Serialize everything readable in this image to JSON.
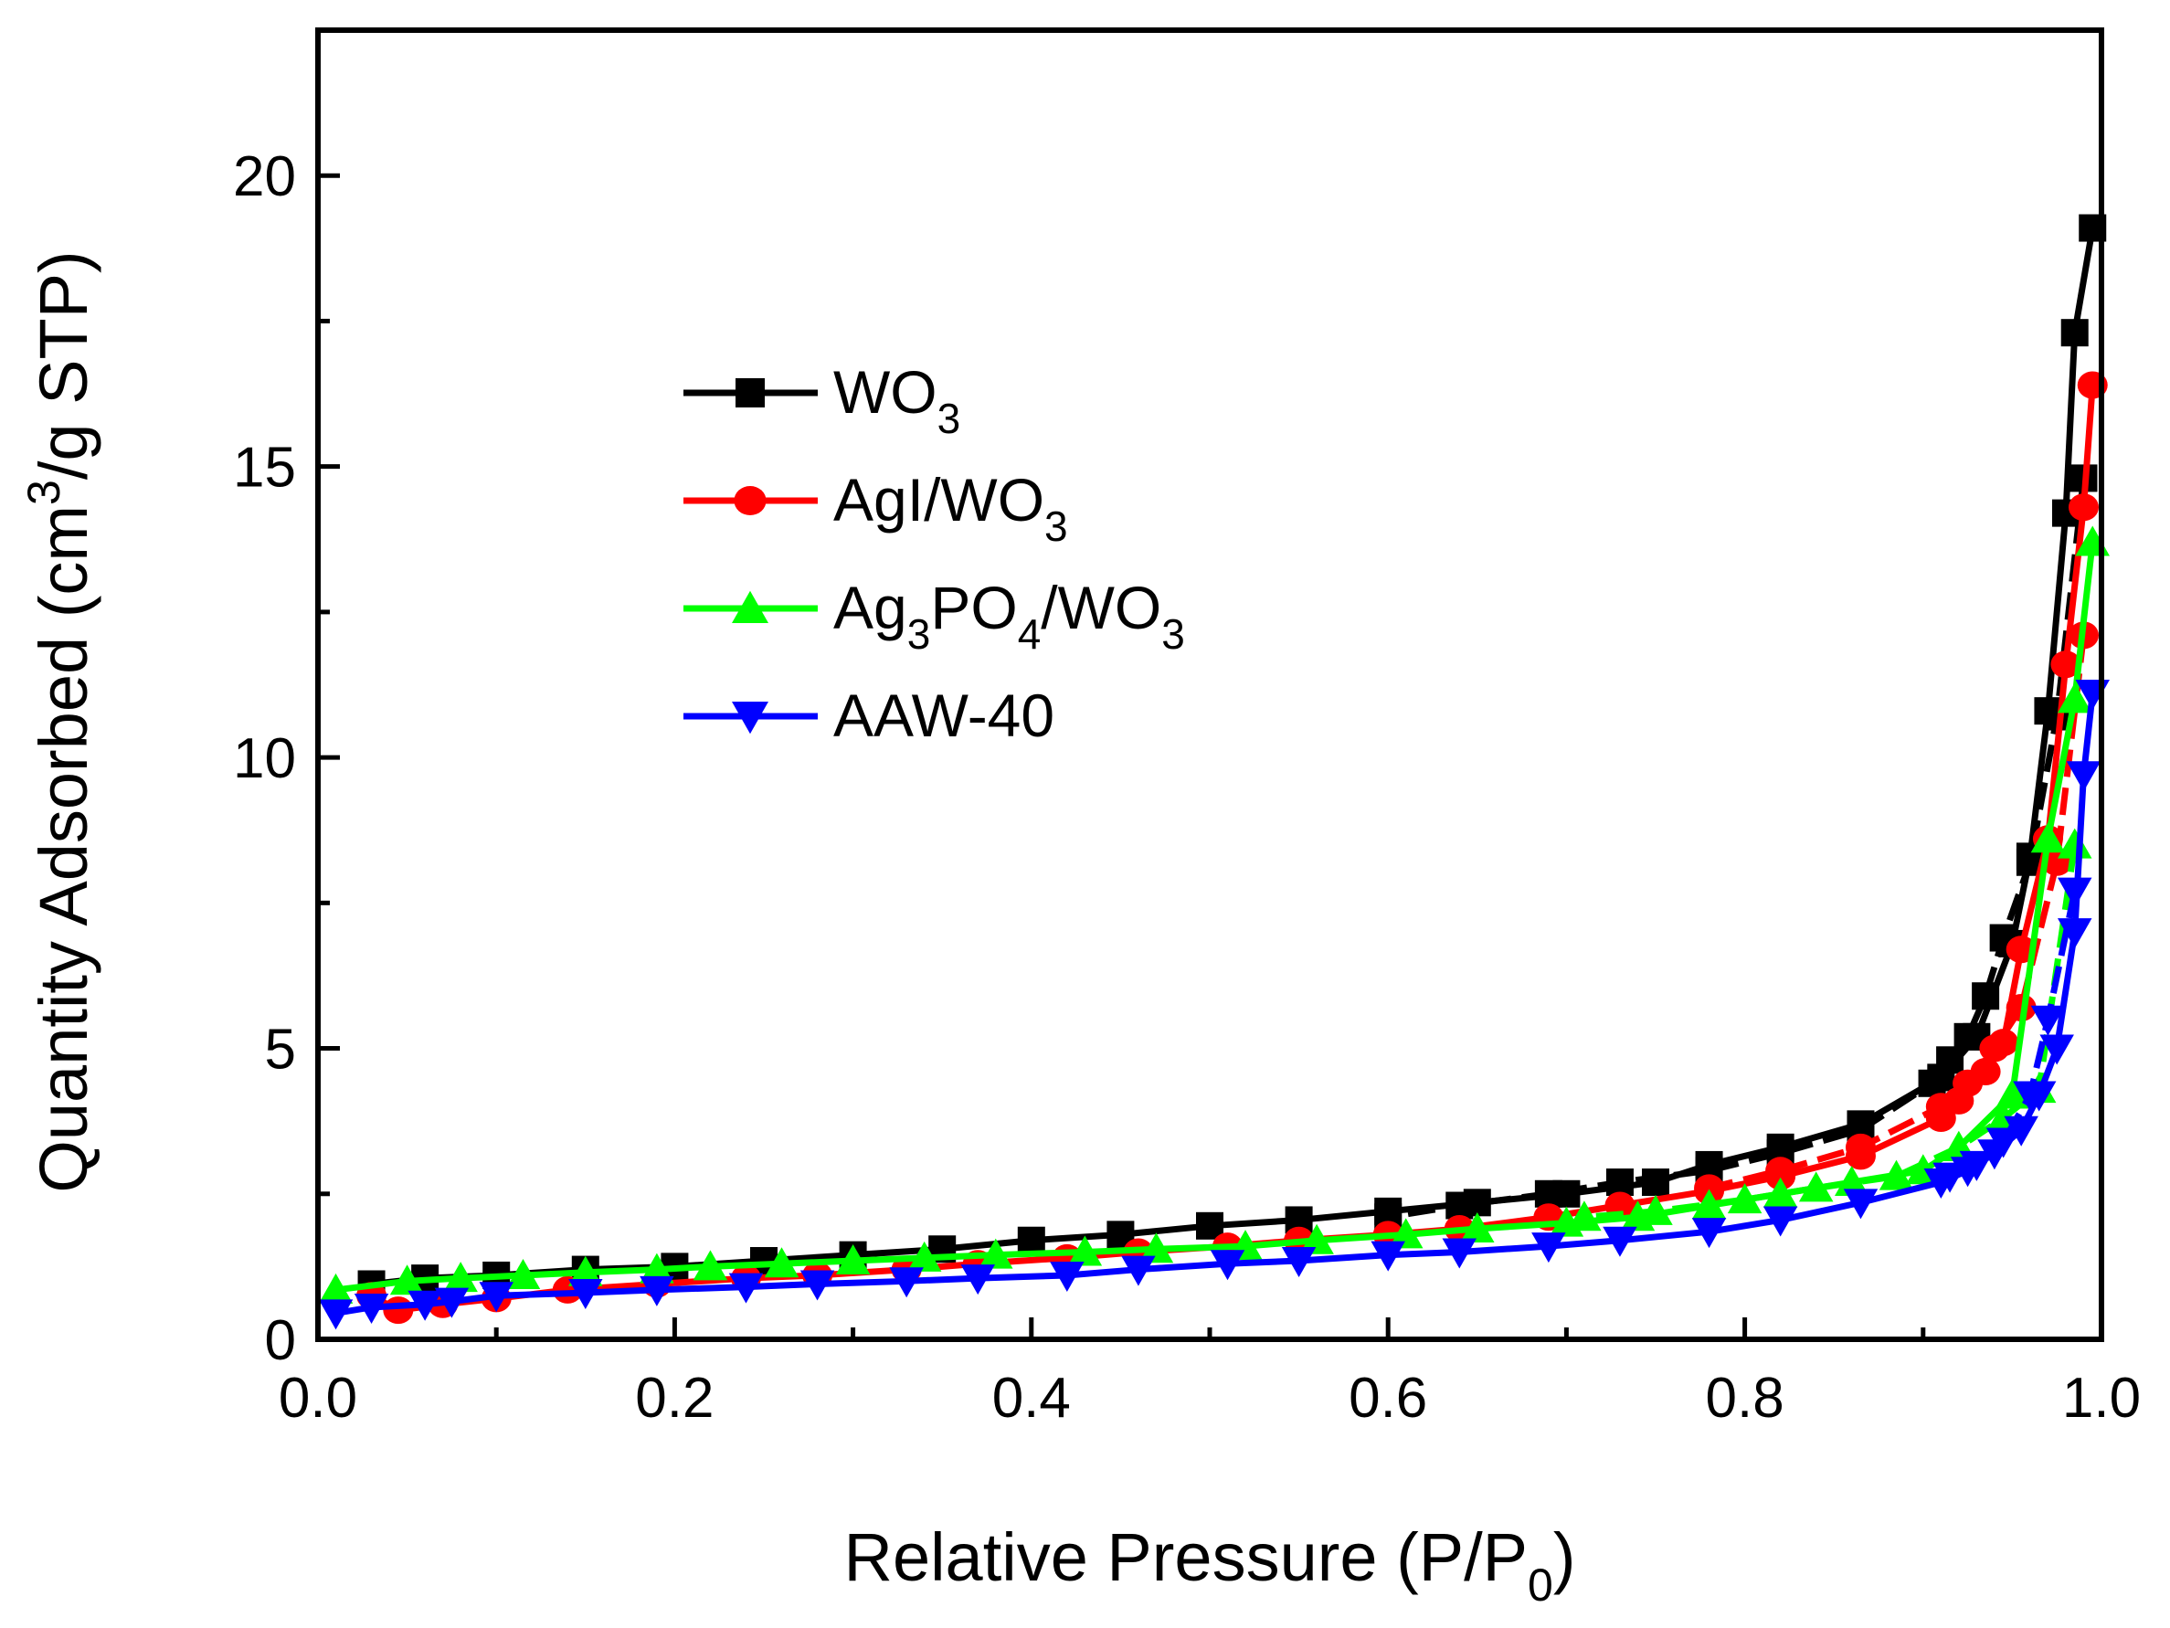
{
  "chart_data": {
    "type": "line",
    "title": "",
    "xlabel": "Relative Pressure (P/P",
    "xlabel_sub": "0",
    "xlabel_end": ")",
    "ylabel": "Quantity Adsorbed (cm",
    "ylabel_sup": "3",
    "ylabel_end": "/g STP)",
    "xlim": [
      0.0,
      1.0
    ],
    "ylim": [
      0,
      22.5
    ],
    "xticks": [
      "0.0",
      "0.2",
      "0.4",
      "0.6",
      "0.8",
      "1.0"
    ],
    "xtick_values": [
      0,
      0.2,
      0.4,
      0.6,
      0.8,
      1.0
    ],
    "yticks": [
      "0",
      "5",
      "10",
      "15",
      "20"
    ],
    "ytick_values": [
      0,
      5,
      10,
      15,
      20
    ],
    "legend_position": "upper-left-center",
    "series": [
      {
        "name": "WO",
        "sub": "3",
        "sub_after": "",
        "color": "#000000",
        "marker": "square",
        "adsorption": [
          [
            0.03,
            0.95
          ],
          [
            0.06,
            1.05
          ],
          [
            0.1,
            1.1
          ],
          [
            0.15,
            1.2
          ],
          [
            0.2,
            1.25
          ],
          [
            0.25,
            1.35
          ],
          [
            0.3,
            1.45
          ],
          [
            0.35,
            1.55
          ],
          [
            0.4,
            1.7
          ],
          [
            0.45,
            1.8
          ],
          [
            0.5,
            1.95
          ],
          [
            0.55,
            2.05
          ],
          [
            0.6,
            2.2
          ],
          [
            0.65,
            2.35
          ],
          [
            0.7,
            2.5
          ],
          [
            0.75,
            2.7
          ],
          [
            0.78,
            3.0
          ],
          [
            0.82,
            3.3
          ],
          [
            0.865,
            3.7
          ],
          [
            0.91,
            4.5
          ],
          [
            0.93,
            5.2
          ],
          [
            0.95,
            6.8
          ],
          [
            0.96,
            8.3
          ],
          [
            0.97,
            10.8
          ],
          [
            0.98,
            14.2
          ],
          [
            0.985,
            17.3
          ],
          [
            0.995,
            19.1
          ]
        ],
        "desorption": [
          [
            0.99,
            14.8
          ],
          [
            0.975,
            10.7
          ],
          [
            0.96,
            8.2
          ],
          [
            0.945,
            6.9
          ],
          [
            0.935,
            5.9
          ],
          [
            0.925,
            5.2
          ],
          [
            0.915,
            4.8
          ],
          [
            0.905,
            4.4
          ],
          [
            0.865,
            3.6
          ],
          [
            0.82,
            3.2
          ],
          [
            0.78,
            2.9
          ],
          [
            0.73,
            2.7
          ],
          [
            0.69,
            2.5
          ],
          [
            0.64,
            2.3
          ],
          [
            0.6,
            2.1
          ]
        ]
      },
      {
        "name": "AgI/WO",
        "sub": "3",
        "sub_after": "",
        "color": "#ff0000",
        "marker": "circle",
        "adsorption": [
          [
            0.03,
            0.75
          ],
          [
            0.045,
            0.5
          ],
          [
            0.07,
            0.6
          ],
          [
            0.1,
            0.7
          ],
          [
            0.14,
            0.85
          ],
          [
            0.19,
            0.95
          ],
          [
            0.24,
            1.05
          ],
          [
            0.28,
            1.1
          ],
          [
            0.33,
            1.2
          ],
          [
            0.37,
            1.3
          ],
          [
            0.42,
            1.4
          ],
          [
            0.46,
            1.5
          ],
          [
            0.51,
            1.6
          ],
          [
            0.55,
            1.7
          ],
          [
            0.6,
            1.8
          ],
          [
            0.64,
            1.9
          ],
          [
            0.69,
            2.1
          ],
          [
            0.73,
            2.3
          ],
          [
            0.78,
            2.55
          ],
          [
            0.82,
            2.8
          ],
          [
            0.865,
            3.15
          ],
          [
            0.91,
            3.8
          ],
          [
            0.92,
            4.1
          ],
          [
            0.935,
            4.6
          ],
          [
            0.945,
            5.1
          ],
          [
            0.955,
            6.7
          ],
          [
            0.97,
            8.6
          ],
          [
            0.98,
            11.6
          ],
          [
            0.99,
            14.3
          ],
          [
            0.995,
            16.4
          ]
        ],
        "desorption": [
          [
            0.99,
            12.1
          ],
          [
            0.975,
            8.2
          ],
          [
            0.955,
            5.7
          ],
          [
            0.94,
            5.0
          ],
          [
            0.925,
            4.4
          ],
          [
            0.91,
            4.0
          ],
          [
            0.865,
            3.3
          ],
          [
            0.82,
            2.9
          ],
          [
            0.78,
            2.6
          ]
        ]
      },
      {
        "name": "Ag",
        "sub": "3",
        "sub_after": "PO",
        "sub2": "4",
        "tail": "/WO",
        "sub3": "3",
        "color": "#00ff00",
        "marker": "triangle-up",
        "adsorption": [
          [
            0.01,
            0.85
          ],
          [
            0.05,
            1.0
          ],
          [
            0.08,
            1.05
          ],
          [
            0.115,
            1.1
          ],
          [
            0.15,
            1.15
          ],
          [
            0.19,
            1.2
          ],
          [
            0.22,
            1.25
          ],
          [
            0.26,
            1.3
          ],
          [
            0.3,
            1.35
          ],
          [
            0.34,
            1.4
          ],
          [
            0.38,
            1.45
          ],
          [
            0.43,
            1.5
          ],
          [
            0.47,
            1.55
          ],
          [
            0.52,
            1.6
          ],
          [
            0.56,
            1.7
          ],
          [
            0.61,
            1.8
          ],
          [
            0.65,
            1.9
          ],
          [
            0.7,
            2.0
          ],
          [
            0.74,
            2.1
          ],
          [
            0.78,
            2.3
          ],
          [
            0.82,
            2.5
          ],
          [
            0.86,
            2.7
          ],
          [
            0.9,
            2.9
          ],
          [
            0.92,
            3.3
          ],
          [
            0.95,
            4.2
          ],
          [
            0.97,
            8.6
          ],
          [
            0.985,
            11.0
          ],
          [
            0.995,
            13.7
          ]
        ],
        "desorption": [
          [
            0.985,
            8.5
          ],
          [
            0.965,
            4.3
          ],
          [
            0.945,
            3.8
          ],
          [
            0.92,
            3.3
          ],
          [
            0.885,
            2.8
          ],
          [
            0.84,
            2.6
          ],
          [
            0.8,
            2.4
          ],
          [
            0.75,
            2.2
          ],
          [
            0.71,
            2.1
          ]
        ]
      },
      {
        "name": "AAW-40",
        "sub": "",
        "sub_after": "",
        "color": "#0000ff",
        "marker": "triangle-down",
        "adsorption": [
          [
            0.01,
            0.45
          ],
          [
            0.03,
            0.55
          ],
          [
            0.06,
            0.6
          ],
          [
            0.075,
            0.65
          ],
          [
            0.1,
            0.75
          ],
          [
            0.15,
            0.8
          ],
          [
            0.19,
            0.85
          ],
          [
            0.24,
            0.9
          ],
          [
            0.28,
            0.95
          ],
          [
            0.33,
            1.0
          ],
          [
            0.37,
            1.05
          ],
          [
            0.42,
            1.1
          ],
          [
            0.46,
            1.2
          ],
          [
            0.51,
            1.3
          ],
          [
            0.55,
            1.35
          ],
          [
            0.6,
            1.45
          ],
          [
            0.64,
            1.5
          ],
          [
            0.69,
            1.6
          ],
          [
            0.73,
            1.7
          ],
          [
            0.78,
            1.85
          ],
          [
            0.82,
            2.05
          ],
          [
            0.865,
            2.35
          ],
          [
            0.91,
            2.7
          ],
          [
            0.925,
            2.9
          ],
          [
            0.94,
            3.2
          ],
          [
            0.955,
            3.6
          ],
          [
            0.965,
            4.2
          ],
          [
            0.975,
            5.0
          ],
          [
            0.985,
            7.0
          ],
          [
            0.99,
            9.7
          ],
          [
            0.995,
            11.1
          ]
        ],
        "desorption": [
          [
            0.985,
            7.7
          ],
          [
            0.97,
            5.5
          ],
          [
            0.96,
            4.2
          ],
          [
            0.945,
            3.4
          ],
          [
            0.93,
            3.0
          ],
          [
            0.915,
            2.8
          ]
        ]
      }
    ]
  }
}
